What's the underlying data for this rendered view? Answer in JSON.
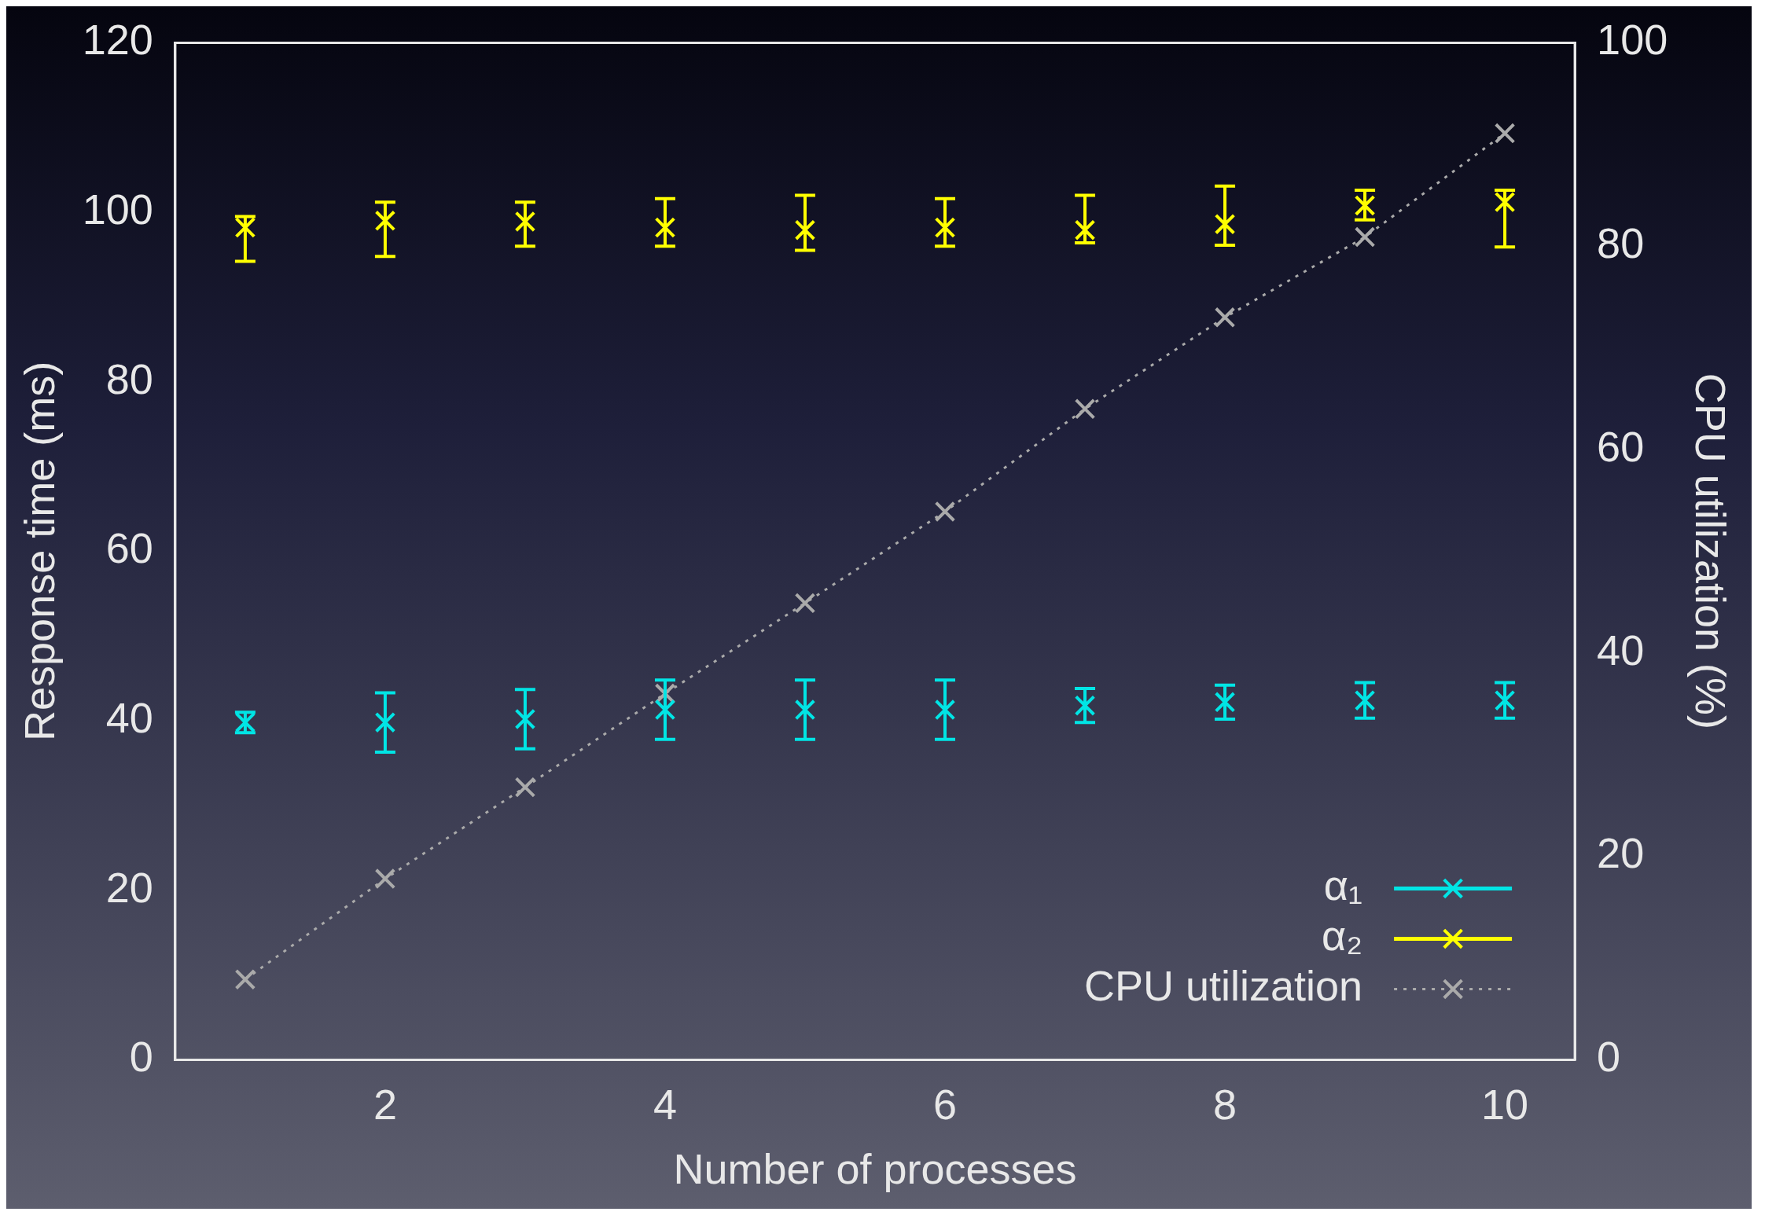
{
  "chart_data": {
    "type": "scatter",
    "xlabel": "Number of processes",
    "ylabel": "Response time (ms)",
    "y2label": "CPU utilization (%)",
    "x": [
      1,
      2,
      3,
      4,
      5,
      6,
      7,
      8,
      9,
      10
    ],
    "series": [
      {
        "name": "α₁",
        "color": "#00e5e5",
        "marker": "cross",
        "values": [
          39.8,
          39.8,
          40.2,
          41.3,
          41.3,
          41.3,
          41.8,
          42.2,
          42.4,
          42.4
        ],
        "errors": [
          1.2,
          3.5,
          3.5,
          3.5,
          3.5,
          3.5,
          2,
          2,
          2.1,
          2.1
        ]
      },
      {
        "name": "α₂",
        "color": "#ffff00",
        "marker": "cross",
        "values": [
          98.2,
          99,
          98.9,
          98.2,
          97.9,
          98.2,
          97.9,
          98.6,
          100.8,
          101.2
        ],
        "errors": [
          [
            94.2,
            99.5
          ],
          [
            94.8,
            101.2
          ],
          [
            96,
            101.2
          ],
          [
            96,
            101.6
          ],
          [
            95.5,
            102
          ],
          [
            96,
            101.6
          ],
          [
            96.4,
            102
          ],
          [
            96.1,
            103.1
          ],
          [
            99.1,
            102.6
          ],
          [
            95.9,
            102.6
          ]
        ]
      },
      {
        "name": "CPU utilization",
        "type": "line",
        "axis": "y2",
        "color": "#aaaaaa",
        "marker": "cross",
        "line_style": "dotted",
        "values": [
          7.9,
          17.8,
          26.8,
          36,
          44.9,
          53.9,
          64,
          73,
          80.9,
          91.1
        ]
      }
    ],
    "xlim": [
      0.5,
      10.5
    ],
    "xticks": [
      2,
      4,
      6,
      8,
      10
    ],
    "ylim": [
      0,
      120
    ],
    "yticks": [
      0,
      20,
      40,
      60,
      80,
      100,
      120
    ],
    "y2lim": [
      0,
      100
    ],
    "y2ticks": [
      0,
      20,
      40,
      60,
      80,
      100
    ],
    "grid": false,
    "legend": "bottom right"
  }
}
